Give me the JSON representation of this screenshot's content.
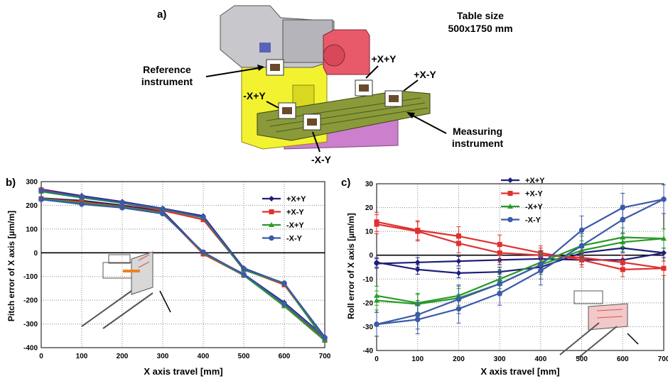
{
  "figure": {
    "panel_a_label": "a)",
    "table_size_line1": "Table size",
    "table_size_line2": "500x1750 mm",
    "reference_line1": "Reference",
    "reference_line2": "instrument",
    "measuring_line1": "Measuring",
    "measuring_line2": "instrument",
    "sensor_labels": [
      "+X+Y",
      "+X-Y",
      "-X+Y",
      "-X-Y"
    ]
  },
  "chart_data": [
    {
      "type": "line",
      "panel_label": "b)",
      "xlabel": "X axis travel [mm]",
      "ylabel": "Pitch error of X axis [µm/m]",
      "xlim": [
        0,
        700
      ],
      "ylim": [
        -400,
        300
      ],
      "xticks": [
        0,
        100,
        200,
        300,
        400,
        500,
        600,
        700
      ],
      "yticks": [
        -400,
        -300,
        -200,
        -100,
        0,
        100,
        200,
        300
      ],
      "grid": "dotted",
      "legend_position": "top-right",
      "series": [
        {
          "name": "+X+Y",
          "color": "#1f1f7a",
          "marker": "diamond",
          "x": [
            0,
            100,
            200,
            300,
            400,
            500,
            600,
            700,
            600,
            500,
            400,
            300,
            200,
            100,
            0
          ],
          "y": [
            268,
            240,
            215,
            187,
            155,
            -65,
            -130,
            -355,
            -210,
            -90,
            0,
            175,
            200,
            220,
            230
          ]
        },
        {
          "name": "+X-Y",
          "color": "#e03030",
          "marker": "square",
          "x": [
            0,
            100,
            200,
            300,
            400,
            500,
            600,
            700,
            600,
            500,
            400,
            300,
            200,
            100,
            0
          ],
          "y": [
            265,
            235,
            210,
            178,
            140,
            -70,
            -135,
            -365,
            -220,
            -95,
            -5,
            170,
            195,
            215,
            228
          ]
        },
        {
          "name": "-X+Y",
          "color": "#2a9a2a",
          "marker": "triangle",
          "x": [
            0,
            100,
            200,
            300,
            400,
            500,
            600,
            700,
            600,
            500,
            400,
            300,
            200,
            100,
            0
          ],
          "y": [
            228,
            210,
            193,
            168,
            0,
            -95,
            -225,
            -370,
            -130,
            -72,
            148,
            183,
            210,
            232,
            258
          ]
        },
        {
          "name": "-X-Y",
          "color": "#3c5aa8",
          "marker": "circle",
          "x": [
            0,
            100,
            200,
            300,
            400,
            500,
            600,
            700,
            600,
            500,
            400,
            300,
            200,
            100,
            0
          ],
          "y": [
            225,
            205,
            190,
            165,
            3,
            -92,
            -215,
            -358,
            -128,
            -68,
            150,
            185,
            212,
            236,
            262
          ]
        }
      ]
    },
    {
      "type": "line",
      "panel_label": "c)",
      "xlabel": "X axis travel [mm]",
      "ylabel": "Roll error of X axis [µm/m]",
      "xlim": [
        0,
        700
      ],
      "ylim": [
        -40,
        30
      ],
      "xticks": [
        0,
        100,
        200,
        300,
        400,
        500,
        600,
        700
      ],
      "yticks": [
        -40,
        -30,
        -20,
        -10,
        0,
        10,
        20,
        30
      ],
      "grid": "dotted",
      "legend_position": "top-left",
      "error_bars": true,
      "series": [
        {
          "name": "+X+Y",
          "color": "#1f1f7a",
          "marker": "diamond",
          "x": [
            0,
            100,
            200,
            300,
            400,
            500,
            600,
            700,
            600,
            500,
            400,
            300,
            200,
            100,
            0
          ],
          "y": [
            -3,
            -6,
            -7.5,
            -7,
            -5,
            1,
            3,
            1,
            -2,
            -2,
            -1.5,
            -2,
            -2.5,
            -3,
            -3.5
          ],
          "err": [
            2,
            2,
            2,
            2,
            2,
            2,
            2,
            2,
            2,
            2,
            2,
            2,
            2,
            2,
            2
          ]
        },
        {
          "name": "+X-Y",
          "color": "#e03030",
          "marker": "square",
          "x": [
            0,
            100,
            200,
            300,
            400,
            500,
            600,
            700,
            600,
            500,
            400,
            300,
            200,
            100,
            0
          ],
          "y": [
            14,
            10.5,
            8,
            4.5,
            1,
            -2,
            -6,
            -5.5,
            -3,
            -1,
            0,
            1,
            5,
            10,
            13
          ],
          "err": [
            4,
            4,
            4,
            4,
            3,
            3,
            3,
            3,
            3,
            3,
            3,
            4,
            4,
            4,
            4
          ]
        },
        {
          "name": "-X+Y",
          "color": "#2a9a2a",
          "marker": "triangle",
          "x": [
            0,
            100,
            200,
            300,
            400,
            500,
            600,
            700,
            600,
            500,
            400,
            300,
            200,
            100,
            0
          ],
          "y": [
            -17,
            -20,
            -17,
            -10,
            -3,
            4,
            7.5,
            7,
            5.5,
            2,
            -4,
            -12,
            -18,
            -20.5,
            -19
          ],
          "err": [
            4,
            4,
            4,
            4,
            4,
            4,
            4,
            4,
            4,
            4,
            4,
            4,
            4,
            4,
            4
          ]
        },
        {
          "name": "-X-Y",
          "color": "#3c5aa8",
          "marker": "circle",
          "x": [
            0,
            100,
            200,
            300,
            400,
            500,
            600,
            700,
            600,
            500,
            400,
            300,
            200,
            100,
            0
          ],
          "y": [
            -29,
            -25,
            -18.5,
            -12,
            -4,
            10.5,
            20,
            23.5,
            15,
            4,
            -6.5,
            -16,
            -22.5,
            -27,
            -29
          ],
          "err": [
            5,
            6,
            6,
            5,
            6,
            6,
            6,
            6,
            6,
            5,
            6,
            5,
            6,
            6,
            5
          ]
        }
      ]
    }
  ]
}
